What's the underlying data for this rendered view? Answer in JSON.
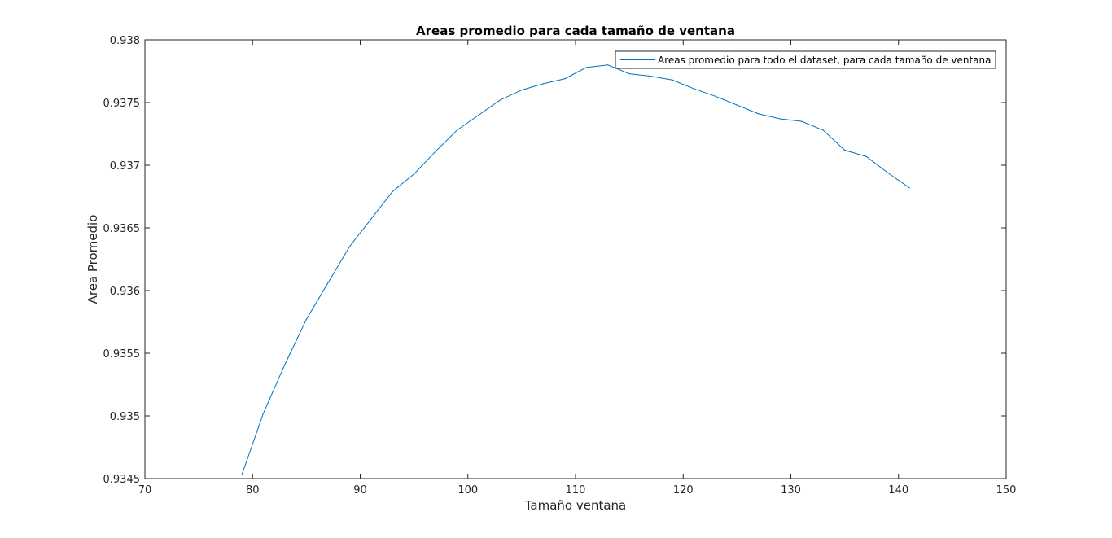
{
  "chart_data": {
    "type": "line",
    "title": "Areas promedio para cada tamaño de ventana",
    "xlabel": "Tamaño ventana",
    "ylabel": "Area Promedio",
    "xlim": [
      70,
      150
    ],
    "ylim": [
      0.9345,
      0.938
    ],
    "xticks": [
      70,
      80,
      90,
      100,
      110,
      120,
      130,
      140,
      150
    ],
    "xtick_labels": [
      "70",
      "80",
      "90",
      "100",
      "110",
      "120",
      "130",
      "140",
      "150"
    ],
    "yticks": [
      0.9345,
      0.935,
      0.9355,
      0.936,
      0.9365,
      0.937,
      0.9375,
      0.938
    ],
    "ytick_labels": [
      "0.9345",
      "0.935",
      "0.9355",
      "0.936",
      "0.9365",
      "0.937",
      "0.9375",
      "0.938"
    ],
    "grid": false,
    "legend_position": "top-right",
    "line_color": "#0072bd",
    "series": [
      {
        "name": "Areas promedio para todo el dataset, para cada tamaño de ventana",
        "x": [
          79,
          81,
          83,
          85,
          87,
          89,
          91,
          93,
          95,
          97,
          99,
          101,
          103,
          105,
          107,
          109,
          111,
          113,
          115,
          117,
          119,
          121,
          123,
          125,
          127,
          129,
          131,
          133,
          135,
          137,
          139,
          141
        ],
        "y": [
          0.93453,
          0.93502,
          0.93541,
          0.93577,
          0.93606,
          0.93635,
          0.93657,
          0.93679,
          0.93693,
          0.93711,
          0.93728,
          0.9374,
          0.93752,
          0.9376,
          0.93765,
          0.93769,
          0.93778,
          0.9378,
          0.93773,
          0.93771,
          0.93768,
          0.93761,
          0.93755,
          0.93748,
          0.93741,
          0.93737,
          0.93735,
          0.93728,
          0.93712,
          0.93707,
          0.93694,
          0.93682
        ]
      }
    ]
  }
}
